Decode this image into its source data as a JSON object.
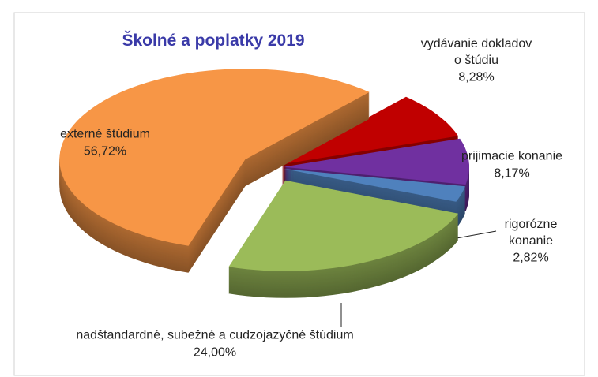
{
  "chart_data": {
    "type": "pie3d",
    "title": "Školné a poplatky 2019",
    "categories": [
      "vydávanie dokladov o štúdiu",
      "prijimacie konanie",
      "rigorózne konanie",
      "nadštandardné, subežné a cudzojazyčné štúdium",
      "externé štúdium"
    ],
    "values": [
      8.28,
      8.17,
      2.82,
      24.0,
      56.72
    ],
    "value_labels": [
      "8,28%",
      "8,17%",
      "2,82%",
      "24,00%",
      "56,72%"
    ],
    "colors": [
      "#c00000",
      "#7030a0",
      "#4f81bd",
      "#9bbb59",
      "#f79646"
    ]
  }
}
